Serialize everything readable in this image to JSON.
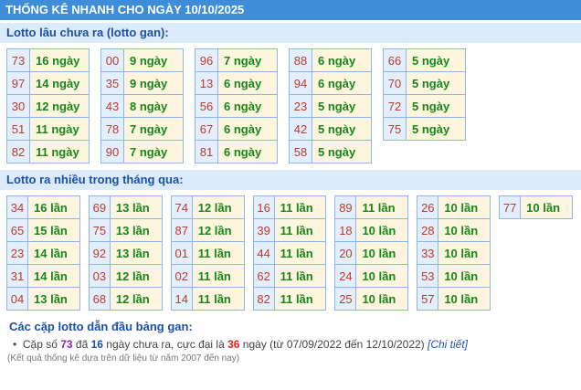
{
  "header": {
    "title": "THỐNG KÊ NHANH CHO NGÀY 10/10/2025"
  },
  "gan": {
    "title": "Lotto lâu chưa ra (lotto gan):",
    "tables": [
      [
        [
          "73",
          "16 ngày"
        ],
        [
          "97",
          "14 ngày"
        ],
        [
          "30",
          "12 ngày"
        ],
        [
          "51",
          "11 ngày"
        ],
        [
          "82",
          "11 ngày"
        ]
      ],
      [
        [
          "00",
          "9 ngày"
        ],
        [
          "35",
          "9 ngày"
        ],
        [
          "43",
          "8 ngày"
        ],
        [
          "78",
          "7 ngày"
        ],
        [
          "90",
          "7 ngày"
        ]
      ],
      [
        [
          "96",
          "7 ngày"
        ],
        [
          "13",
          "6 ngày"
        ],
        [
          "56",
          "6 ngày"
        ],
        [
          "67",
          "6 ngày"
        ],
        [
          "81",
          "6 ngày"
        ]
      ],
      [
        [
          "88",
          "6 ngày"
        ],
        [
          "94",
          "6 ngày"
        ],
        [
          "23",
          "5 ngày"
        ],
        [
          "42",
          "5 ngày"
        ],
        [
          "58",
          "5 ngày"
        ]
      ],
      [
        [
          "66",
          "5 ngày"
        ],
        [
          "70",
          "5 ngày"
        ],
        [
          "72",
          "5 ngày"
        ],
        [
          "75",
          "5 ngày"
        ]
      ]
    ]
  },
  "nhieu": {
    "title": "Lotto ra nhiều trong tháng qua:",
    "tables": [
      [
        [
          "34",
          "16 lần"
        ],
        [
          "65",
          "15 lần"
        ],
        [
          "23",
          "14 lần"
        ],
        [
          "31",
          "14 lần"
        ],
        [
          "04",
          "13 lần"
        ]
      ],
      [
        [
          "69",
          "13 lần"
        ],
        [
          "75",
          "13 lần"
        ],
        [
          "92",
          "13 lần"
        ],
        [
          "03",
          "12 lần"
        ],
        [
          "68",
          "12 lần"
        ]
      ],
      [
        [
          "74",
          "12 lần"
        ],
        [
          "87",
          "12 lần"
        ],
        [
          "01",
          "11 lần"
        ],
        [
          "02",
          "11 lần"
        ],
        [
          "14",
          "11 lần"
        ]
      ],
      [
        [
          "16",
          "11 lần"
        ],
        [
          "39",
          "11 lần"
        ],
        [
          "44",
          "11 lần"
        ],
        [
          "62",
          "11 lần"
        ],
        [
          "82",
          "11 lần"
        ]
      ],
      [
        [
          "89",
          "11 lần"
        ],
        [
          "18",
          "10 lần"
        ],
        [
          "20",
          "10 lần"
        ],
        [
          "24",
          "10 lần"
        ],
        [
          "25",
          "10 lần"
        ]
      ],
      [
        [
          "26",
          "10 lần"
        ],
        [
          "28",
          "10 lần"
        ],
        [
          "33",
          "10 lần"
        ],
        [
          "53",
          "10 lần"
        ],
        [
          "57",
          "10 lần"
        ]
      ],
      [
        [
          "77",
          "10 lần"
        ]
      ]
    ]
  },
  "lead": {
    "title": "Các cặp lotto dẫn đầu bảng gan:",
    "t1": "Cặp số ",
    "num": "73",
    "t2": " đã ",
    "days": "16",
    "t3": " ngày chưa ra, cực đại là ",
    "max": "36",
    "t4": " ngày (từ 07/09/2022 đến 12/10/2022) ",
    "link": "[Chi tiết]"
  },
  "note": "(Kết quả thống kê dựa trên dữ liệu từ năm 2007 đến nay)"
}
